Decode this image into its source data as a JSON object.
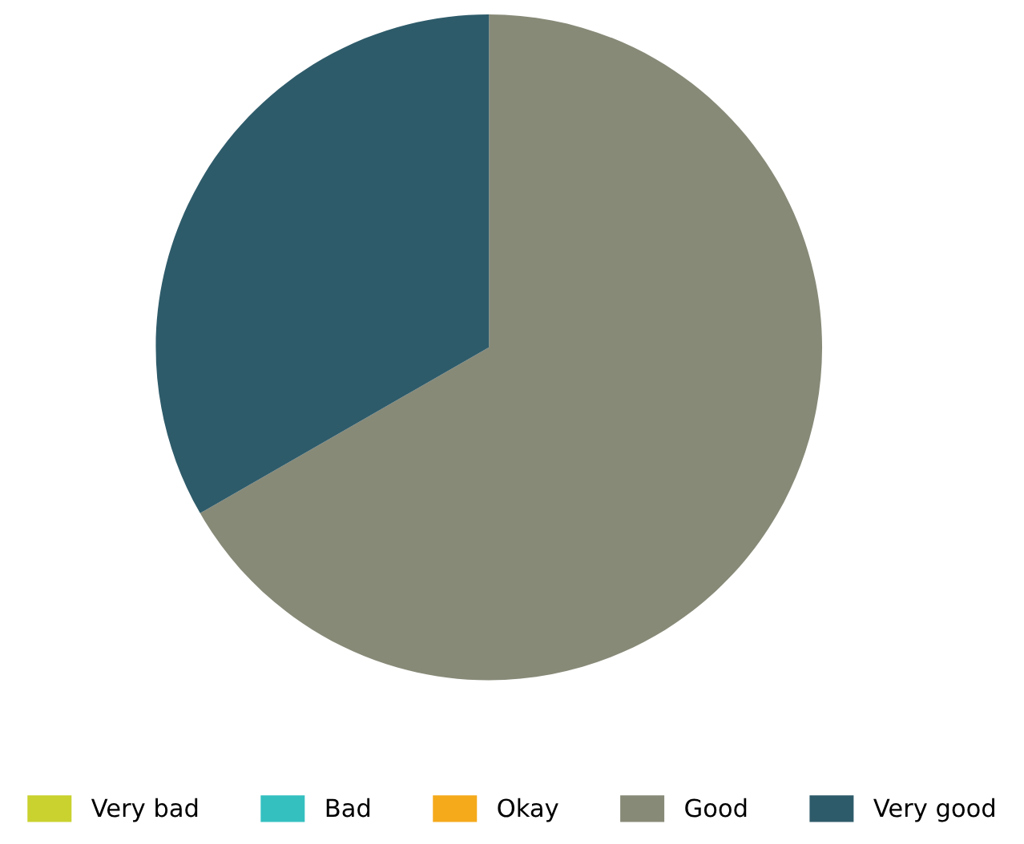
{
  "chart_data": {
    "type": "pie",
    "categories": [
      "Very bad",
      "Bad",
      "Okay",
      "Good",
      "Very good"
    ],
    "values": [
      0,
      0,
      0,
      66.7,
      33.3
    ],
    "colors": [
      "#c9d22e",
      "#35c0c0",
      "#f5aa1c",
      "#888a78",
      "#2e5b6a"
    ],
    "legend": "bottom"
  }
}
